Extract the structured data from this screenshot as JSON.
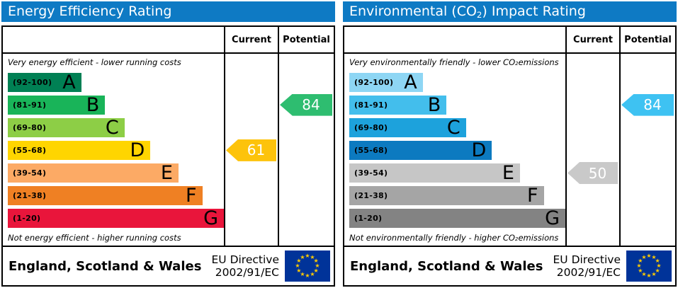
{
  "colors": {
    "header_bg": "#0e7ac4",
    "flag_bg": "#003399",
    "flag_star": "#ffcc00"
  },
  "chart_data": [
    {
      "type": "bar",
      "title": "Energy Efficiency Rating",
      "categories": [
        "A (92-100)",
        "B (81-91)",
        "C (69-80)",
        "D (55-68)",
        "E (39-54)",
        "F (21-38)",
        "G (1-20)"
      ],
      "values": [
        34,
        45,
        54,
        66,
        79,
        90,
        100
      ],
      "value_note": "band bar lengths as % of chart width",
      "band_colors": [
        "#008054",
        "#19b459",
        "#8dce46",
        "#ffd500",
        "#fcaa65",
        "#ef8023",
        "#e9153b"
      ],
      "current": 61,
      "current_band": "D",
      "potential": 84,
      "potential_band": "B",
      "top_label": "Very energy efficient - lower running costs",
      "bottom_label": "Not energy efficient - higher running costs",
      "footer": "England, Scotland & Wales — EU Directive 2002/91/EC"
    },
    {
      "type": "bar",
      "title": "Environmental (CO2) Impact Rating",
      "categories": [
        "A (92-100)",
        "B (81-91)",
        "C (69-80)",
        "D (55-68)",
        "E (39-54)",
        "F (21-38)",
        "G (1-20)"
      ],
      "values": [
        34,
        45,
        54,
        66,
        79,
        90,
        100
      ],
      "value_note": "band bar lengths as % of chart width",
      "band_colors": [
        "#8ed6f4",
        "#43beec",
        "#1da2dc",
        "#0c7ac0",
        "#c6c6c6",
        "#a5a5a5",
        "#838383"
      ],
      "current": 50,
      "current_band": "E",
      "potential": 84,
      "potential_band": "B",
      "top_label": "Very environmentally friendly - lower CO2 emissions",
      "bottom_label": "Not environmentally friendly - higher CO2 emissions",
      "footer": "England, Scotland & Wales — EU Directive 2002/91/EC"
    }
  ],
  "panels": [
    {
      "title": {
        "prefix": "Energy Efficiency Rating",
        "sub": "",
        "suffix": ""
      },
      "columns": {
        "current": "Current",
        "potential": "Potential"
      },
      "top_caption": {
        "prefix": "Very energy efficient - lower running costs",
        "sub": "",
        "suffix": ""
      },
      "bottom_caption": {
        "prefix": "Not energy efficient - higher running costs",
        "sub": "",
        "suffix": ""
      },
      "bands": [
        {
          "range": "(92-100)",
          "letter": "A",
          "color": "#008054",
          "width_pct": 34
        },
        {
          "range": "(81-91)",
          "letter": "B",
          "color": "#19b459",
          "width_pct": 45
        },
        {
          "range": "(69-80)",
          "letter": "C",
          "color": "#8dce46",
          "width_pct": 54
        },
        {
          "range": "(55-68)",
          "letter": "D",
          "color": "#ffd500",
          "width_pct": 66
        },
        {
          "range": "(39-54)",
          "letter": "E",
          "color": "#fcaa65",
          "width_pct": 79
        },
        {
          "range": "(21-38)",
          "letter": "F",
          "color": "#ef8023",
          "width_pct": 90
        },
        {
          "range": "(1-20)",
          "letter": "G",
          "color": "#e9153b",
          "width_pct": 100
        }
      ],
      "arrows": {
        "current": {
          "value": "61",
          "color": "#fdc30b",
          "row": 3
        },
        "potential": {
          "value": "84",
          "color": "#2ebd70",
          "row": 1
        }
      },
      "footer": {
        "region": "England, Scotland & Wales",
        "directive_line1": "EU Directive",
        "directive_line2": "2002/91/EC"
      }
    },
    {
      "title": {
        "prefix": "Environmental (CO",
        "sub": "2",
        "suffix": ") Impact Rating"
      },
      "columns": {
        "current": "Current",
        "potential": "Potential"
      },
      "top_caption": {
        "prefix": "Very environmentally friendly - lower CO",
        "sub": "2",
        "suffix": " emissions"
      },
      "bottom_caption": {
        "prefix": "Not environmentally friendly - higher CO",
        "sub": "2",
        "suffix": " emissions"
      },
      "bands": [
        {
          "range": "(92-100)",
          "letter": "A",
          "color": "#8ed6f4",
          "width_pct": 34
        },
        {
          "range": "(81-91)",
          "letter": "B",
          "color": "#43beec",
          "width_pct": 45
        },
        {
          "range": "(69-80)",
          "letter": "C",
          "color": "#1da2dc",
          "width_pct": 54
        },
        {
          "range": "(55-68)",
          "letter": "D",
          "color": "#0c7ac0",
          "width_pct": 66
        },
        {
          "range": "(39-54)",
          "letter": "E",
          "color": "#c6c6c6",
          "width_pct": 79
        },
        {
          "range": "(21-38)",
          "letter": "F",
          "color": "#a5a5a5",
          "width_pct": 90
        },
        {
          "range": "(1-20)",
          "letter": "G",
          "color": "#838383",
          "width_pct": 100
        }
      ],
      "arrows": {
        "current": {
          "value": "50",
          "color": "#c9c9c9",
          "row": 4
        },
        "potential": {
          "value": "84",
          "color": "#3ec2f2",
          "row": 1
        }
      },
      "footer": {
        "region": "England, Scotland & Wales",
        "directive_line1": "EU Directive",
        "directive_line2": "2002/91/EC"
      }
    }
  ]
}
